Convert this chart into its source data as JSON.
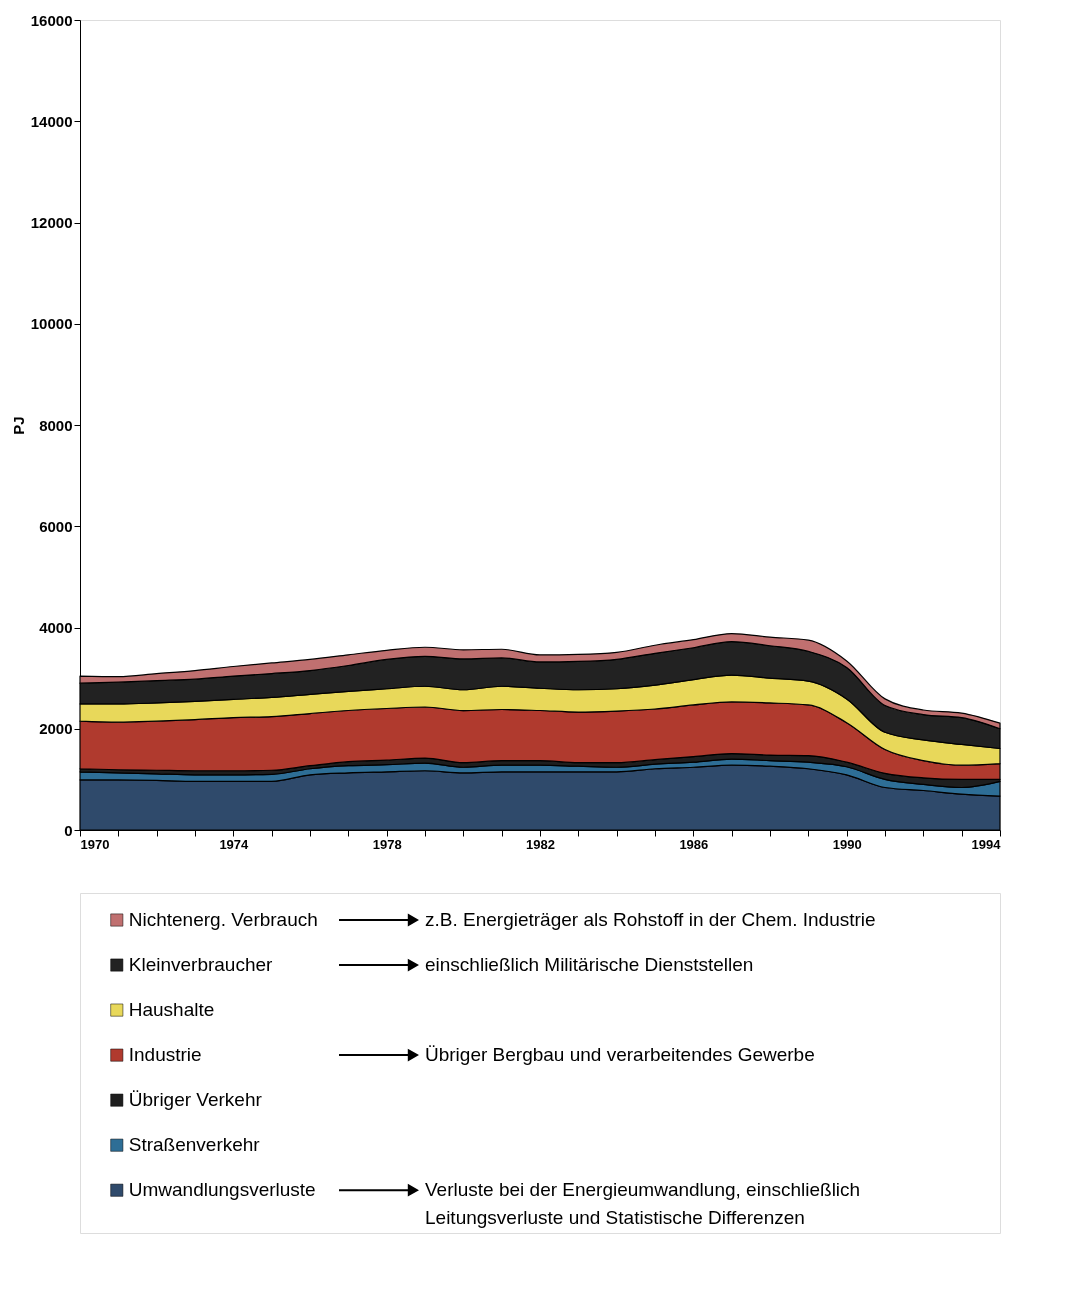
{
  "chart_data": {
    "type": "area",
    "stacked": true,
    "ylabel": "PJ",
    "x": [
      1970,
      1971,
      1972,
      1973,
      1974,
      1975,
      1976,
      1977,
      1978,
      1979,
      1980,
      1981,
      1982,
      1983,
      1984,
      1985,
      1986,
      1987,
      1988,
      1989,
      1990,
      1991,
      1992,
      1993,
      1994
    ],
    "series": [
      {
        "name": "Umwandlungsverluste",
        "color": "#2f4a6b",
        "values": [
          990,
          990,
          980,
          960,
          960,
          960,
          1090,
          1130,
          1150,
          1170,
          1130,
          1150,
          1150,
          1150,
          1150,
          1210,
          1240,
          1280,
          1260,
          1210,
          1090,
          840,
          780,
          710,
          670
        ]
      },
      {
        "name": "Straßenverkehr",
        "color": "#2e6e96",
        "values": [
          160,
          140,
          130,
          130,
          130,
          140,
          120,
          140,
          140,
          150,
          110,
          130,
          130,
          110,
          90,
          90,
          100,
          120,
          110,
          130,
          160,
          160,
          120,
          130,
          290
        ]
      },
      {
        "name": "Übriger Verkehr",
        "color": "#1e1e1e",
        "values": [
          60,
          60,
          70,
          80,
          80,
          80,
          60,
          80,
          90,
          100,
          90,
          90,
          90,
          70,
          90,
          90,
          110,
          110,
          110,
          130,
          90,
          120,
          130,
          160,
          40
        ]
      },
      {
        "name": "Industrie",
        "color": "#b03a2e",
        "values": [
          940,
          940,
          970,
          1010,
          1050,
          1060,
          1030,
          1010,
          1020,
          1010,
          1030,
          1010,
          990,
          1000,
          1020,
          1000,
          1020,
          1020,
          1030,
          1000,
          780,
          470,
          340,
          280,
          310
        ]
      },
      {
        "name": "Haushalte",
        "color": "#e8d85a",
        "values": [
          340,
          360,
          360,
          360,
          360,
          380,
          380,
          380,
          390,
          410,
          410,
          460,
          440,
          440,
          440,
          470,
          500,
          530,
          490,
          470,
          470,
          340,
          410,
          410,
          300
        ]
      },
      {
        "name": "Kleinverbraucher",
        "color": "#222222",
        "values": [
          410,
          430,
          440,
          440,
          460,
          470,
          470,
          510,
          580,
          590,
          610,
          560,
          520,
          560,
          580,
          630,
          630,
          660,
          640,
          590,
          620,
          530,
          500,
          530,
          390
        ]
      },
      {
        "name": "Nichtenerg. Verbrauch",
        "color": "#c07070",
        "values": [
          140,
          110,
          140,
          170,
          190,
          210,
          220,
          210,
          180,
          180,
          180,
          170,
          140,
          140,
          140,
          160,
          160,
          160,
          170,
          220,
          130,
          130,
          90,
          90,
          110
        ]
      }
    ],
    "xlim": [
      1970,
      1994
    ],
    "xticks": [
      1970,
      {
        "value": 1971,
        "label": null
      },
      {
        "value": 1972,
        "label": null
      },
      {
        "value": 1973,
        "label": null
      },
      1974,
      {
        "value": 1975,
        "label": null
      },
      {
        "value": 1976,
        "label": null
      },
      {
        "value": 1977,
        "label": null
      },
      1978,
      {
        "value": 1979,
        "label": null
      },
      {
        "value": 1980,
        "label": null
      },
      {
        "value": 1981,
        "label": null
      },
      1982,
      {
        "value": 1983,
        "label": null
      },
      {
        "value": 1984,
        "label": null
      },
      {
        "value": 1985,
        "label": null
      },
      1986,
      {
        "value": 1987,
        "label": null
      },
      {
        "value": 1988,
        "label": null
      },
      {
        "value": 1989,
        "label": null
      },
      1990,
      {
        "value": 1991,
        "label": null
      },
      {
        "value": 1992,
        "label": null
      },
      {
        "value": 1993,
        "label": null
      },
      1994
    ],
    "ylim": [
      0,
      16000
    ],
    "yticks": [
      0,
      2000,
      4000,
      6000,
      8000,
      10000,
      12000,
      14000,
      16000
    ],
    "grid": false,
    "legend": "bottom",
    "annotations": [
      "z.B. Energieträger als Rohstoff in der Chem. Industrie",
      "einschließlich Militärische Dienststellen",
      "Übriger Bergbau und verarbeitendes Gewerbe",
      "Verluste bei der Energieumwandlung, einschließlich\nLeitungsverluste und Statistische Differenzen"
    ]
  }
}
